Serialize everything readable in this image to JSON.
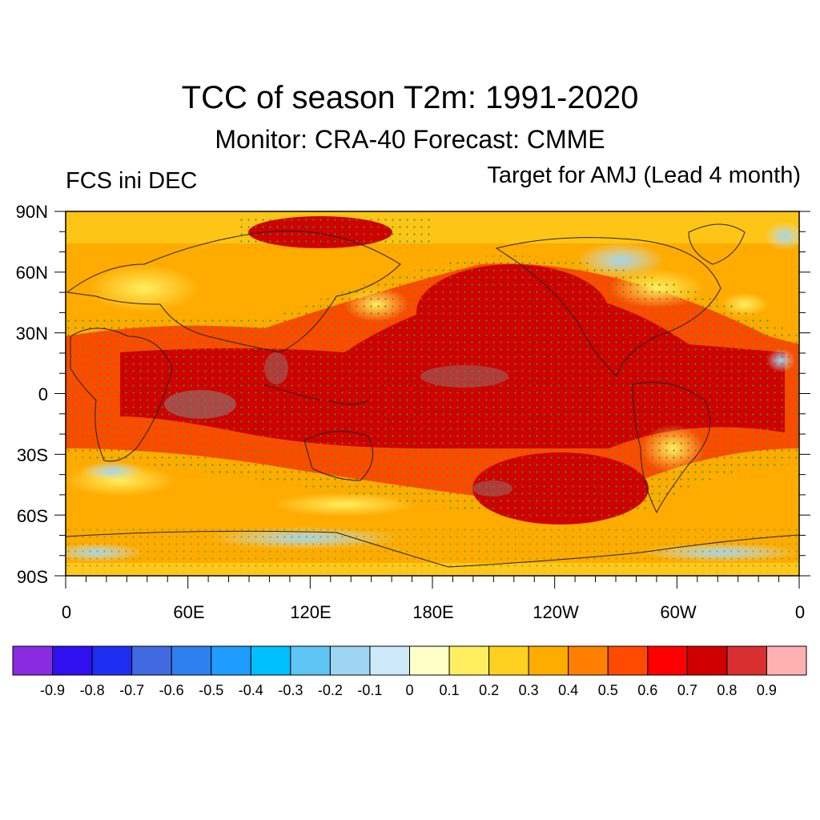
{
  "title": "TCC of season T2m: 1991-2020",
  "subtitle": "Monitor: CRA-40   Forecast: CMME",
  "left_note": "FCS ini DEC",
  "right_note": "Target for AMJ (Lead 4 month)",
  "lat_labels": [
    "90N",
    "60N",
    "30N",
    "0",
    "30S",
    "60S",
    "90S"
  ],
  "lon_labels": [
    "0",
    "60E",
    "120E",
    "180E",
    "120W",
    "60W",
    "0"
  ],
  "map_data": {
    "variable": "Temporal correlation coefficient (TCC) of seasonal 2m temperature",
    "period": "1991-2020",
    "lat_range": [
      -90,
      90
    ],
    "lon_range": [
      0,
      360
    ],
    "stipple_color": "#2ca02c"
  },
  "colorbar": {
    "colors": [
      "#8a2be2",
      "#3010f0",
      "#1e2ef0",
      "#4169e1",
      "#2e7ff0",
      "#1e9cff",
      "#00bfff",
      "#5fc5f5",
      "#9fd5f2",
      "#cde9fa",
      "#ffffc8",
      "#ffee60",
      "#ffd020",
      "#ffab00",
      "#ff8000",
      "#ff4a00",
      "#ff0000",
      "#d00000",
      "#d83030",
      "#ffb0b0"
    ],
    "labels": [
      "-0.9",
      "-0.8",
      "-0.7",
      "-0.6",
      "-0.5",
      "-0.4",
      "-0.3",
      "-0.2",
      "-0.1",
      "0",
      "0.1",
      "0.2",
      "0.3",
      "0.4",
      "0.5",
      "0.6",
      "0.7",
      "0.8",
      "0.9"
    ]
  }
}
